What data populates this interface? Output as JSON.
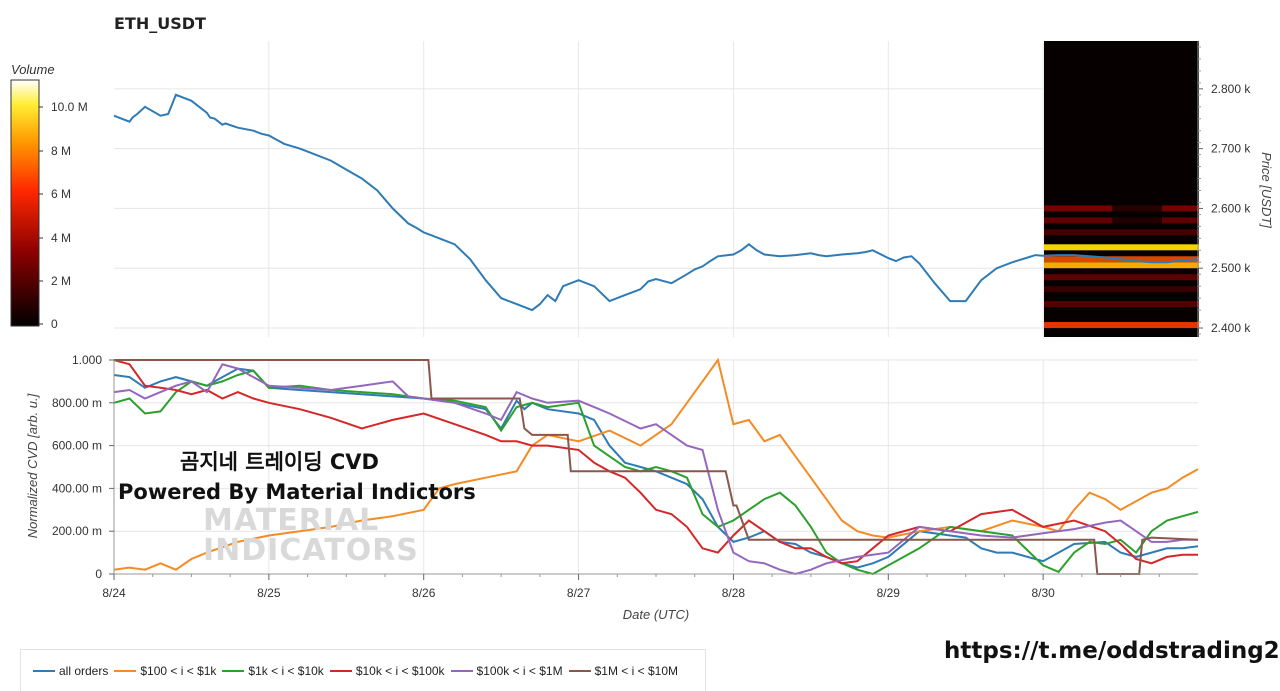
{
  "title": "ETH_USDT",
  "overlay": {
    "line1": "곰지네 트레이딩 CVD",
    "line2": "Powered By Material Indictors",
    "watermark_line1": "MATERIAL",
    "watermark_line2": "INDICATORS"
  },
  "footer_link": "https://t.me/oddstrading2",
  "colorbar": {
    "label": "Volume",
    "ticks": [
      "10.0 M",
      "8 M",
      "6 M",
      "4 M",
      "2 M",
      "0"
    ]
  },
  "chart_data": [
    {
      "type": "line",
      "title": "ETH_USDT",
      "ylabel": "Price [USDT]",
      "xlim": [
        0,
        7
      ],
      "ylim": [
        2385,
        2880
      ],
      "yticks": [
        {
          "value": 2400,
          "label": "2.400 k"
        },
        {
          "value": 2500,
          "label": "2.500 k"
        },
        {
          "value": 2600,
          "label": "2.600 k"
        },
        {
          "value": 2700,
          "label": "2.700 k"
        },
        {
          "value": 2800,
          "label": "2.800 k"
        }
      ],
      "series": [
        {
          "color": "#2f7bb5",
          "x": [
            0,
            0.05,
            0.1,
            0.12,
            0.15,
            0.2,
            0.3,
            0.35,
            0.4,
            0.5,
            0.6,
            0.62,
            0.65,
            0.7,
            0.72,
            0.8,
            0.9,
            0.95,
            1.0,
            1.05,
            1.1,
            1.2,
            1.3,
            1.4,
            1.5,
            1.6,
            1.7,
            1.8,
            1.9,
            1.95,
            2.0,
            2.05,
            2.1,
            2.2,
            2.3,
            2.4,
            2.5,
            2.6,
            2.7,
            2.75,
            2.8,
            2.85,
            2.9,
            3.0,
            3.1,
            3.2,
            3.3,
            3.4,
            3.45,
            3.5,
            3.6,
            3.7,
            3.75,
            3.8,
            3.85,
            3.9,
            4.0,
            4.05,
            4.1,
            4.15,
            4.2,
            4.3,
            4.4,
            4.5,
            4.55,
            4.6,
            4.7,
            4.8,
            4.85,
            4.9,
            5.0,
            5.05,
            5.1,
            5.15,
            5.2,
            5.3,
            5.4,
            5.5,
            5.6,
            5.7,
            5.8,
            5.9,
            5.95,
            6.0,
            6.1,
            6.2,
            6.3,
            6.4,
            6.5,
            6.6,
            6.7,
            6.8,
            6.9,
            7.0
          ],
          "y": [
            2755,
            2750,
            2745,
            2752,
            2758,
            2770,
            2755,
            2758,
            2790,
            2780,
            2760,
            2752,
            2750,
            2740,
            2742,
            2735,
            2730,
            2725,
            2722,
            2715,
            2708,
            2700,
            2690,
            2680,
            2665,
            2650,
            2630,
            2600,
            2575,
            2568,
            2560,
            2555,
            2550,
            2540,
            2515,
            2480,
            2450,
            2440,
            2430,
            2440,
            2455,
            2445,
            2470,
            2480,
            2470,
            2445,
            2455,
            2465,
            2478,
            2482,
            2475,
            2490,
            2498,
            2503,
            2512,
            2520,
            2523,
            2530,
            2540,
            2530,
            2523,
            2520,
            2522,
            2525,
            2522,
            2520,
            2523,
            2525,
            2527,
            2530,
            2517,
            2512,
            2518,
            2520,
            2508,
            2475,
            2445,
            2445,
            2480,
            2500,
            2510,
            2518,
            2522,
            2521,
            2522,
            2522,
            2520,
            2518,
            2515,
            2512,
            2510,
            2510,
            2513,
            2515
          ]
        }
      ]
    },
    {
      "type": "line",
      "xlabel": "Date (UTC)",
      "ylabel": "Normalized CVD [arb. u.]",
      "xlim": [
        0,
        7
      ],
      "ylim": [
        0,
        1
      ],
      "xticks": [
        "8/24",
        "8/25",
        "8/26",
        "8/27",
        "8/28",
        "8/29",
        "8/30"
      ],
      "yticks": [
        {
          "value": 0,
          "label": "0"
        },
        {
          "value": 0.2,
          "label": "200.00 m"
        },
        {
          "value": 0.4,
          "label": "400.00 m"
        },
        {
          "value": 0.6,
          "label": "600.00 m"
        },
        {
          "value": 0.8,
          "label": "800.00 m"
        },
        {
          "value": 1.0,
          "label": "1.000"
        }
      ],
      "series": [
        {
          "name": "all orders",
          "color": "#2f7bb5",
          "x": [
            0,
            0.1,
            0.2,
            0.3,
            0.4,
            0.5,
            0.6,
            0.7,
            0.8,
            0.9,
            1.0,
            1.2,
            1.4,
            1.6,
            1.8,
            2.0,
            2.2,
            2.4,
            2.5,
            2.6,
            2.65,
            2.7,
            2.8,
            3.0,
            3.1,
            3.2,
            3.3,
            3.4,
            3.5,
            3.6,
            3.7,
            3.8,
            3.9,
            4.0,
            4.1,
            4.2,
            4.3,
            4.4,
            4.5,
            4.6,
            4.7,
            4.8,
            4.9,
            5.0,
            5.2,
            5.4,
            5.5,
            5.6,
            5.7,
            5.8,
            6.0,
            6.1,
            6.2,
            6.4,
            6.5,
            6.6,
            6.7,
            6.8,
            6.9,
            7.0
          ],
          "y": [
            0.93,
            0.92,
            0.87,
            0.9,
            0.92,
            0.9,
            0.88,
            0.92,
            0.96,
            0.95,
            0.87,
            0.86,
            0.85,
            0.84,
            0.83,
            0.82,
            0.8,
            0.77,
            0.68,
            0.81,
            0.77,
            0.8,
            0.77,
            0.75,
            0.72,
            0.6,
            0.52,
            0.5,
            0.48,
            0.45,
            0.42,
            0.35,
            0.22,
            0.15,
            0.17,
            0.2,
            0.15,
            0.14,
            0.1,
            0.08,
            0.05,
            0.03,
            0.05,
            0.08,
            0.2,
            0.18,
            0.17,
            0.12,
            0.1,
            0.1,
            0.06,
            0.1,
            0.14,
            0.15,
            0.1,
            0.08,
            0.1,
            0.12,
            0.12,
            0.13
          ]
        },
        {
          "name": "$100 < i < $1k",
          "color": "#f48b24",
          "x": [
            0,
            0.1,
            0.2,
            0.3,
            0.4,
            0.5,
            0.6,
            0.8,
            1.0,
            1.2,
            1.4,
            1.6,
            1.8,
            2.0,
            2.1,
            2.2,
            2.4,
            2.6,
            2.7,
            2.8,
            3.0,
            3.2,
            3.4,
            3.6,
            3.7,
            3.8,
            3.9,
            4.0,
            4.1,
            4.2,
            4.3,
            4.4,
            4.5,
            4.6,
            4.7,
            4.8,
            4.9,
            5.0,
            5.2,
            5.4,
            5.6,
            5.8,
            6.0,
            6.1,
            6.2,
            6.3,
            6.4,
            6.5,
            6.6,
            6.7,
            6.8,
            6.9,
            7.0
          ],
          "y": [
            0.02,
            0.03,
            0.02,
            0.05,
            0.02,
            0.07,
            0.1,
            0.15,
            0.18,
            0.2,
            0.22,
            0.25,
            0.27,
            0.3,
            0.4,
            0.42,
            0.45,
            0.48,
            0.6,
            0.65,
            0.62,
            0.67,
            0.6,
            0.7,
            0.8,
            0.9,
            1.0,
            0.7,
            0.72,
            0.62,
            0.65,
            0.55,
            0.45,
            0.35,
            0.25,
            0.2,
            0.18,
            0.17,
            0.2,
            0.22,
            0.2,
            0.25,
            0.22,
            0.2,
            0.3,
            0.38,
            0.35,
            0.3,
            0.34,
            0.38,
            0.4,
            0.45,
            0.49
          ]
        },
        {
          "name": "$1k < i < $10k",
          "color": "#2ca02c",
          "x": [
            0,
            0.1,
            0.2,
            0.3,
            0.4,
            0.5,
            0.6,
            0.7,
            0.8,
            0.9,
            1.0,
            1.2,
            1.4,
            1.6,
            1.8,
            2.0,
            2.2,
            2.4,
            2.5,
            2.6,
            2.7,
            2.8,
            3.0,
            3.1,
            3.2,
            3.3,
            3.4,
            3.5,
            3.6,
            3.7,
            3.8,
            3.9,
            4.0,
            4.1,
            4.2,
            4.3,
            4.4,
            4.5,
            4.6,
            4.7,
            4.8,
            4.9,
            5.0,
            5.2,
            5.4,
            5.6,
            5.8,
            6.0,
            6.1,
            6.2,
            6.3,
            6.4,
            6.5,
            6.6,
            6.7,
            6.8,
            6.9,
            7.0
          ],
          "y": [
            0.8,
            0.82,
            0.75,
            0.76,
            0.85,
            0.9,
            0.88,
            0.9,
            0.93,
            0.95,
            0.87,
            0.88,
            0.86,
            0.85,
            0.84,
            0.82,
            0.81,
            0.78,
            0.67,
            0.78,
            0.8,
            0.78,
            0.8,
            0.6,
            0.55,
            0.5,
            0.48,
            0.5,
            0.48,
            0.45,
            0.28,
            0.22,
            0.25,
            0.3,
            0.35,
            0.38,
            0.32,
            0.22,
            0.1,
            0.05,
            0.02,
            0.0,
            0.04,
            0.12,
            0.22,
            0.2,
            0.18,
            0.04,
            0.01,
            0.1,
            0.15,
            0.14,
            0.16,
            0.1,
            0.2,
            0.25,
            0.27,
            0.29
          ]
        },
        {
          "name": "$10k < i < $100k",
          "color": "#d62728",
          "x": [
            0,
            0.1,
            0.2,
            0.3,
            0.4,
            0.5,
            0.6,
            0.7,
            0.8,
            0.9,
            1.0,
            1.2,
            1.4,
            1.6,
            1.8,
            2.0,
            2.2,
            2.4,
            2.5,
            2.6,
            2.7,
            2.8,
            3.0,
            3.1,
            3.2,
            3.3,
            3.4,
            3.5,
            3.6,
            3.7,
            3.8,
            3.9,
            4.0,
            4.1,
            4.2,
            4.3,
            4.4,
            4.5,
            4.6,
            4.7,
            4.8,
            4.9,
            5.0,
            5.2,
            5.4,
            5.6,
            5.8,
            6.0,
            6.2,
            6.4,
            6.5,
            6.6,
            6.7,
            6.8,
            6.9,
            7.0
          ],
          "y": [
            1.0,
            0.98,
            0.88,
            0.87,
            0.86,
            0.84,
            0.86,
            0.82,
            0.85,
            0.82,
            0.8,
            0.77,
            0.73,
            0.68,
            0.72,
            0.75,
            0.7,
            0.65,
            0.62,
            0.62,
            0.6,
            0.6,
            0.58,
            0.52,
            0.48,
            0.45,
            0.38,
            0.3,
            0.28,
            0.22,
            0.12,
            0.1,
            0.18,
            0.25,
            0.2,
            0.15,
            0.12,
            0.12,
            0.08,
            0.05,
            0.06,
            0.12,
            0.18,
            0.22,
            0.2,
            0.28,
            0.3,
            0.22,
            0.25,
            0.2,
            0.14,
            0.07,
            0.05,
            0.08,
            0.09,
            0.09
          ]
        },
        {
          "name": "$100k < i < $1M",
          "color": "#9467bd",
          "x": [
            0,
            0.1,
            0.2,
            0.3,
            0.4,
            0.5,
            0.6,
            0.7,
            0.8,
            0.9,
            1.0,
            1.2,
            1.4,
            1.6,
            1.8,
            1.9,
            2.0,
            2.2,
            2.4,
            2.5,
            2.6,
            2.7,
            2.8,
            3.0,
            3.1,
            3.2,
            3.4,
            3.5,
            3.6,
            3.7,
            3.8,
            3.9,
            4.0,
            4.1,
            4.2,
            4.3,
            4.4,
            4.5,
            4.6,
            4.8,
            5.0,
            5.2,
            5.4,
            5.6,
            5.8,
            6.0,
            6.2,
            6.4,
            6.5,
            6.6,
            6.7,
            6.8,
            6.9,
            7.0
          ],
          "y": [
            0.85,
            0.86,
            0.82,
            0.85,
            0.88,
            0.9,
            0.85,
            0.98,
            0.96,
            0.92,
            0.88,
            0.87,
            0.86,
            0.88,
            0.9,
            0.83,
            0.82,
            0.8,
            0.75,
            0.72,
            0.85,
            0.82,
            0.8,
            0.81,
            0.78,
            0.75,
            0.68,
            0.7,
            0.65,
            0.6,
            0.58,
            0.3,
            0.1,
            0.06,
            0.05,
            0.02,
            0.0,
            0.02,
            0.05,
            0.08,
            0.1,
            0.22,
            0.2,
            0.18,
            0.17,
            0.19,
            0.21,
            0.24,
            0.25,
            0.2,
            0.15,
            0.15,
            0.16,
            0.16
          ]
        },
        {
          "name": "$1M < i < $10M",
          "color": "#8c564b",
          "x": [
            0,
            2.03,
            2.05,
            2.1,
            2.4,
            2.62,
            2.65,
            2.7,
            2.8,
            2.93,
            2.95,
            3.0,
            3.5,
            3.95,
            4.0,
            4.02,
            4.1,
            4.5,
            5.0,
            5.5,
            6.0,
            6.33,
            6.35,
            6.6,
            6.62,
            6.64,
            6.7,
            7.0
          ],
          "y": [
            1.0,
            1.0,
            0.82,
            0.82,
            0.82,
            0.82,
            0.68,
            0.65,
            0.65,
            0.65,
            0.48,
            0.48,
            0.48,
            0.48,
            0.32,
            0.32,
            0.16,
            0.16,
            0.16,
            0.16,
            0.16,
            0.16,
            0.0,
            0.0,
            0.0,
            0.16,
            0.17,
            0.16
          ]
        }
      ]
    }
  ],
  "heatmap": {
    "bands": [
      {
        "price": 2405,
        "color": "#ff3a00",
        "intensity": 0.9
      },
      {
        "price": 2440,
        "color": "#8a0000",
        "intensity": 0.6
      },
      {
        "price": 2465,
        "color": "#6a0000",
        "intensity": 0.5
      },
      {
        "price": 2485,
        "color": "#9b0000",
        "intensity": 0.6
      },
      {
        "price": 2505,
        "color": "#ffb400",
        "intensity": 0.95
      },
      {
        "price": 2515,
        "color": "#ff5500",
        "intensity": 0.85
      },
      {
        "price": 2535,
        "color": "#ffe000",
        "intensity": 0.95
      },
      {
        "price": 2560,
        "color": "#7a0000",
        "intensity": 0.55
      },
      {
        "price": 2580,
        "color": "#a00000",
        "intensity": 0.6
      },
      {
        "price": 2600,
        "color": "#b30000",
        "intensity": 0.65
      }
    ]
  },
  "legend": [
    {
      "label": "all orders",
      "color": "#2f7bb5"
    },
    {
      "label": "$100 < i < $1k",
      "color": "#f48b24"
    },
    {
      "label": "$1k < i < $10k",
      "color": "#2ca02c"
    },
    {
      "label": "$10k < i < $100k",
      "color": "#d62728"
    },
    {
      "label": "$100k < i < $1M",
      "color": "#9467bd"
    },
    {
      "label": "$1M < i < $10M",
      "color": "#8c564b"
    }
  ]
}
